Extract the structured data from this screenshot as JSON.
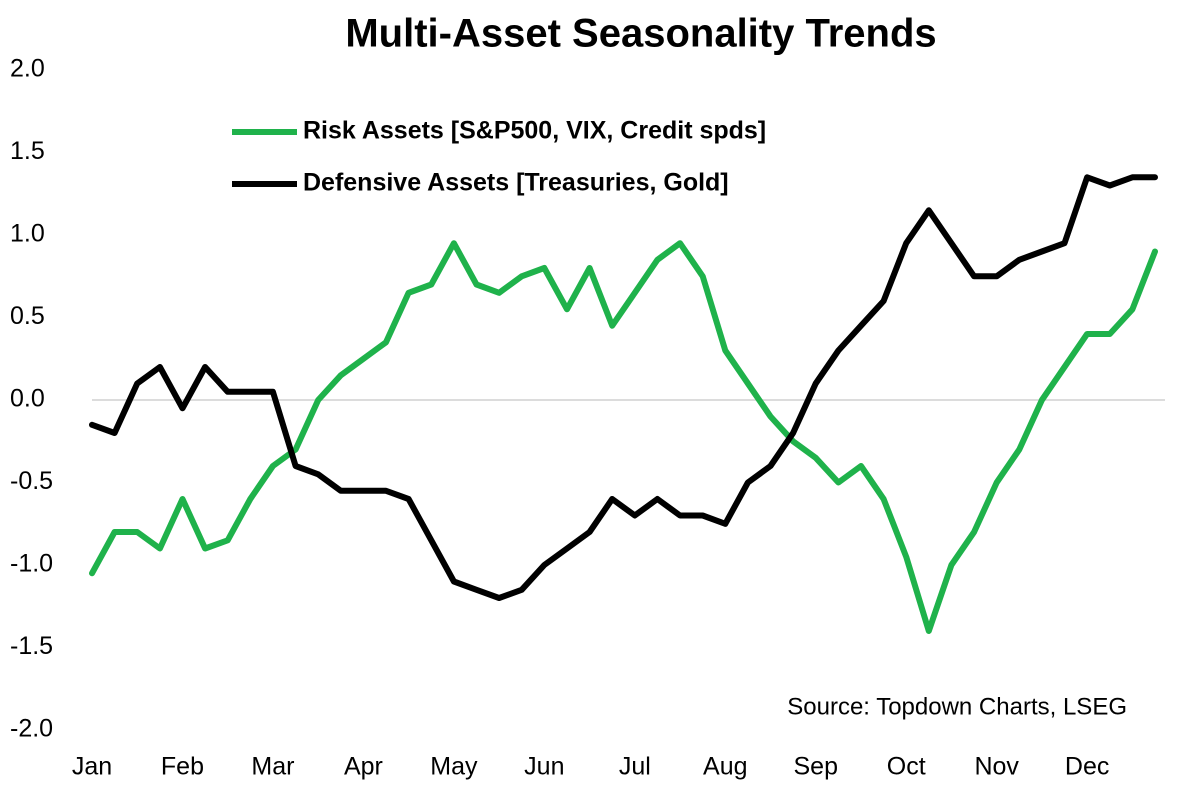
{
  "chart_data": {
    "type": "line",
    "title": "Multi-Asset Seasonality Trends",
    "source": "Source: Topdown Charts, LSEG",
    "x": [
      0,
      0.25,
      0.5,
      0.75,
      1,
      1.25,
      1.5,
      1.75,
      2,
      2.25,
      2.5,
      2.75,
      3,
      3.25,
      3.5,
      3.75,
      4,
      4.25,
      4.5,
      4.75,
      5,
      5.25,
      5.5,
      5.75,
      6,
      6.25,
      6.5,
      6.75,
      7,
      7.25,
      7.5,
      7.75,
      8,
      8.25,
      8.5,
      8.75,
      9,
      9.25,
      9.5,
      9.75,
      10,
      10.25,
      10.5,
      10.75,
      11,
      11.25,
      11.5,
      11.75
    ],
    "series": [
      {
        "name": "Risk Assets [S&P500, VIX, Credit spds]",
        "color": "#1fb24b",
        "values": [
          -1.05,
          -0.8,
          -0.8,
          -0.9,
          -0.6,
          -0.9,
          -0.85,
          -0.6,
          -0.4,
          -0.3,
          0.0,
          0.15,
          0.25,
          0.35,
          0.65,
          0.7,
          0.95,
          0.7,
          0.65,
          0.75,
          0.8,
          0.55,
          0.8,
          0.45,
          0.65,
          0.85,
          0.95,
          0.75,
          0.3,
          0.1,
          -0.1,
          -0.25,
          -0.35,
          -0.5,
          -0.4,
          -0.6,
          -0.95,
          -1.4,
          -1.0,
          -0.8,
          -0.5,
          -0.3,
          0.0,
          0.2,
          0.4,
          0.4,
          0.55,
          0.9
        ]
      },
      {
        "name": "Defensive Assets [Treasuries, Gold]",
        "color": "#000000",
        "values": [
          -0.15,
          -0.2,
          0.1,
          0.2,
          -0.05,
          0.2,
          0.05,
          0.05,
          0.05,
          -0.4,
          -0.45,
          -0.55,
          -0.55,
          -0.55,
          -0.6,
          -0.85,
          -1.1,
          -1.15,
          -1.2,
          -1.15,
          -1.0,
          -0.9,
          -0.8,
          -0.6,
          -0.7,
          -0.6,
          -0.7,
          -0.7,
          -0.75,
          -0.5,
          -0.4,
          -0.2,
          0.1,
          0.3,
          0.45,
          0.6,
          0.95,
          1.15,
          0.95,
          0.75,
          0.75,
          0.85,
          0.9,
          0.95,
          1.35,
          1.3,
          1.35,
          1.35
        ]
      }
    ],
    "xlim": [
      0,
      11.75
    ],
    "xticks": [
      {
        "value": 0,
        "label": "Jan"
      },
      {
        "value": 1,
        "label": "Feb"
      },
      {
        "value": 2,
        "label": "Mar"
      },
      {
        "value": 3,
        "label": "Apr"
      },
      {
        "value": 4,
        "label": "May"
      },
      {
        "value": 5,
        "label": "Jun"
      },
      {
        "value": 6,
        "label": "Jul"
      },
      {
        "value": 7,
        "label": "Aug"
      },
      {
        "value": 8,
        "label": "Sep"
      },
      {
        "value": 9,
        "label": "Oct"
      },
      {
        "value": 10,
        "label": "Nov"
      },
      {
        "value": 11,
        "label": "Dec"
      }
    ],
    "ylim": [
      -2,
      2
    ],
    "yticks": [
      {
        "value": 2,
        "label": "2.0"
      },
      1.5,
      {
        "value": 1,
        "label": "1.0"
      },
      0.5,
      {
        "value": 0,
        "label": "0.0"
      },
      -0.5,
      {
        "value": -1,
        "label": "-1.0"
      },
      -1.5,
      {
        "value": -2,
        "label": "-2.0"
      }
    ],
    "legend": "top-left"
  }
}
